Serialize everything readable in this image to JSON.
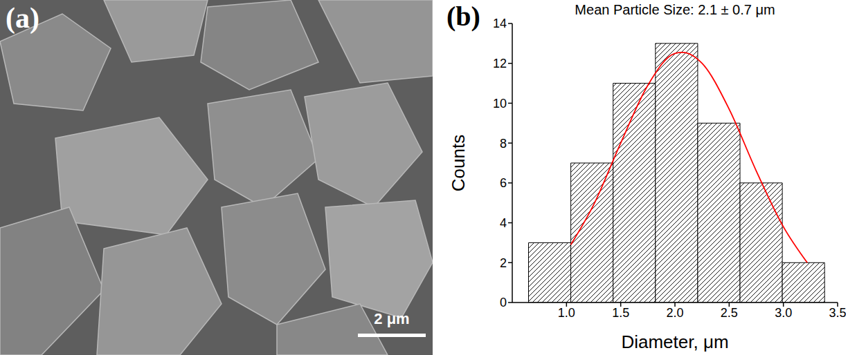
{
  "panel_a": {
    "label": "(a)",
    "scale_bar": "2 μm"
  },
  "chart_data": {
    "type": "histogram",
    "panel_label": "(b)",
    "title": "Mean Particle Size: 2.1 ± 0.7 μm",
    "x_label": "Diameter, μm",
    "y_label": "Counts",
    "bins": [
      0.65,
      1.04,
      1.43,
      1.82,
      2.21,
      2.6,
      2.99,
      3.38
    ],
    "counts": [
      3,
      7,
      11,
      13,
      9,
      6,
      2
    ],
    "color": "#000000",
    "xlim": [
      0.5,
      3.5
    ],
    "xticks": [
      {
        "value": 1,
        "label": "1.0"
      },
      1.5,
      {
        "value": 2,
        "label": "2.0"
      },
      2.5,
      {
        "value": 3,
        "label": "3.0"
      },
      3.5
    ],
    "ylim": [
      0,
      14
    ],
    "yticks": [
      0,
      2,
      4,
      6,
      8,
      10,
      12,
      14
    ],
    "grid": false,
    "curve": {
      "color": "#ff0000",
      "x": [
        1.04,
        1.25,
        1.5,
        1.75,
        2.0,
        2.07,
        2.25,
        2.5,
        2.75,
        3.0,
        3.22
      ],
      "y": [
        2.9,
        4.9,
        8.0,
        10.9,
        12.5,
        12.55,
        12.0,
        9.7,
        6.6,
        3.8,
        2.0
      ]
    }
  }
}
